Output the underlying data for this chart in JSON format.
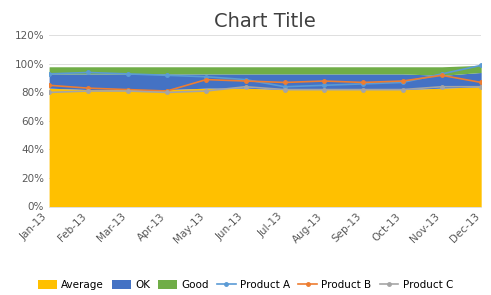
{
  "title": "Chart Title",
  "x_labels": [
    "Jan-13",
    "Feb-13",
    "Mar-13",
    "Apr-13",
    "May-13",
    "Jun-13",
    "Jul-13",
    "Aug-13",
    "Sep-13",
    "Oct-13",
    "Nov-13",
    "Dec-13"
  ],
  "average": [
    0.83,
    0.82,
    0.82,
    0.82,
    0.83,
    0.83,
    0.82,
    0.82,
    0.82,
    0.82,
    0.83,
    0.84
  ],
  "ok": [
    0.1,
    0.11,
    0.11,
    0.11,
    0.1,
    0.1,
    0.11,
    0.11,
    0.11,
    0.11,
    0.09,
    0.1
  ],
  "good": [
    0.05,
    0.05,
    0.05,
    0.05,
    0.05,
    0.05,
    0.05,
    0.05,
    0.05,
    0.05,
    0.06,
    0.05
  ],
  "product_a": [
    0.93,
    0.94,
    0.93,
    0.92,
    0.91,
    0.89,
    0.84,
    0.85,
    0.86,
    0.87,
    0.93,
    0.99
  ],
  "product_b": [
    0.85,
    0.83,
    0.82,
    0.81,
    0.89,
    0.88,
    0.87,
    0.88,
    0.87,
    0.88,
    0.92,
    0.87
  ],
  "product_c": [
    0.8,
    0.81,
    0.81,
    0.8,
    0.81,
    0.84,
    0.82,
    0.82,
    0.82,
    0.82,
    0.84,
    0.84
  ],
  "colors": {
    "average": "#FFC000",
    "ok": "#4472C4",
    "good": "#70AD47",
    "product_a": "#5B9BD5",
    "product_b": "#ED7D31",
    "product_c": "#A5A5A5"
  },
  "ylim": [
    0,
    1.2
  ],
  "yticks": [
    0,
    0.2,
    0.4,
    0.6,
    0.8,
    1.0,
    1.2
  ],
  "background_color": "#FFFFFF",
  "title_fontsize": 14,
  "tick_fontsize": 7.5,
  "legend_fontsize": 7.5
}
